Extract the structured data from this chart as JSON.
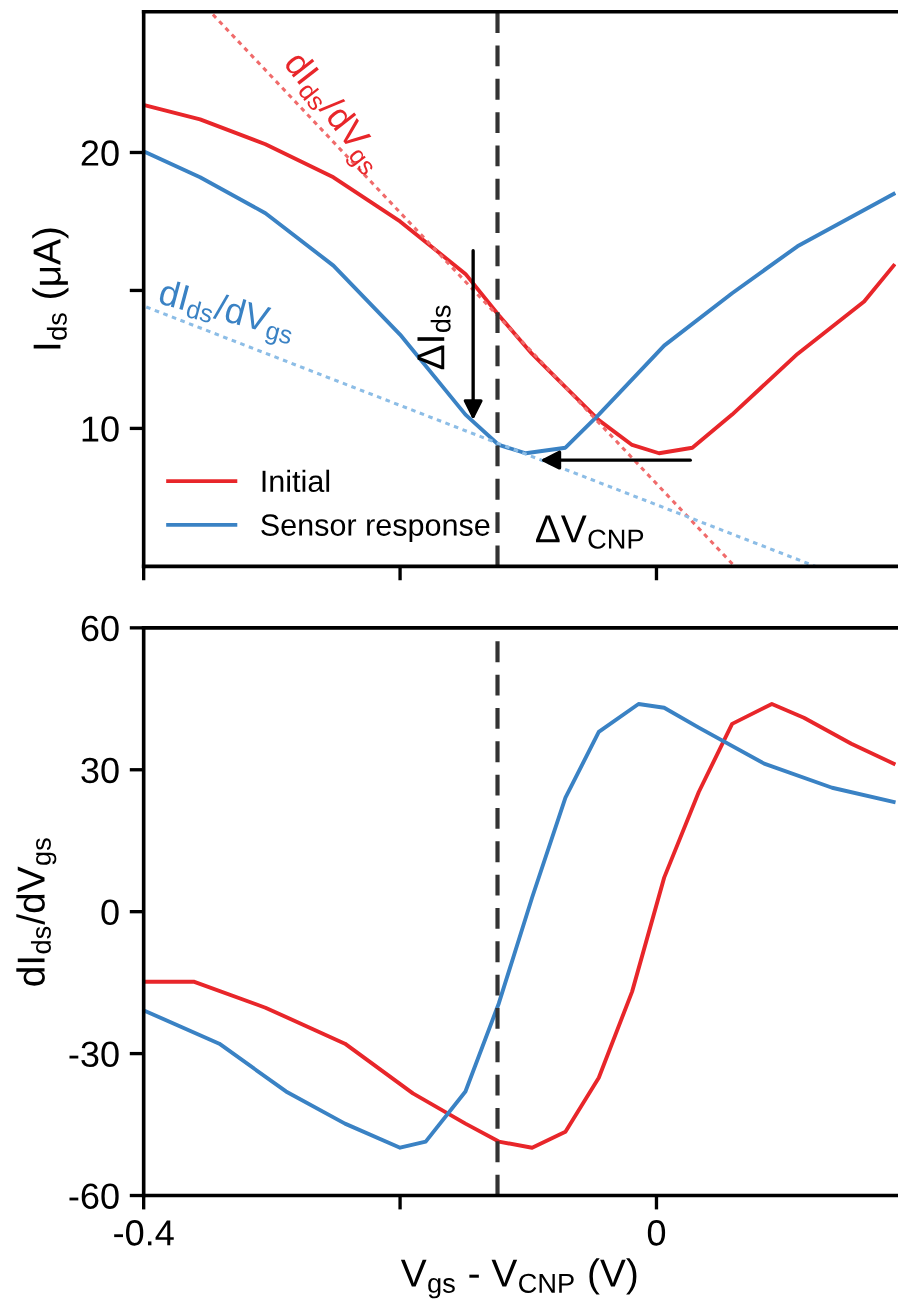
{
  "chart_data": [
    {
      "type": "line",
      "ylabel": "I$_{ds}$ (μA)",
      "xlim": [
        -0.4,
        0.187
      ],
      "ylim": [
        5,
        25.1
      ],
      "xticks": [
        {
          "value": -0.4,
          "label": null
        },
        {
          "value": -0.2,
          "label": null
        },
        {
          "value": 0,
          "label": null
        }
      ],
      "yticks": [
        10,
        {
          "value": 15,
          "label": null
        },
        20
      ],
      "tick_labels": "y",
      "legend": "bottom left",
      "grid": false,
      "series": [
        {
          "name": "Initial",
          "color": "#e8262a",
          "x": [
            -0.398,
            -0.356,
            -0.305,
            -0.252,
            -0.2,
            -0.149,
            -0.123,
            -0.097,
            -0.071,
            -0.045,
            -0.019,
            0.002,
            0.028,
            0.059,
            0.11,
            0.162,
            0.185
          ],
          "values": [
            21.7,
            21.2,
            20.3,
            19.1,
            17.5,
            15.6,
            14.1,
            12.7,
            11.5,
            10.3,
            9.4,
            9.1,
            9.3,
            10.5,
            12.7,
            14.6,
            15.9
          ]
        },
        {
          "name": "Sensor response",
          "color": "#3a82c4",
          "x": [
            -0.398,
            -0.356,
            -0.305,
            -0.252,
            -0.2,
            -0.149,
            -0.123,
            -0.102,
            -0.071,
            -0.045,
            0.006,
            0.059,
            0.11,
            0.185
          ],
          "values": [
            20.0,
            19.1,
            17.8,
            15.9,
            13.4,
            10.5,
            9.4,
            9.1,
            9.3,
            10.5,
            13.0,
            14.9,
            16.6,
            18.5
          ]
        },
        {
          "color": "#f06b6b",
          "line_style": "dotted",
          "x": [
            -0.346,
            0.061
          ],
          "values": [
            25.0,
            5.0
          ]
        },
        {
          "color": "#8cbde6",
          "line_style": "dotted",
          "x": [
            -0.398,
            0.124
          ],
          "values": [
            14.4,
            5.0
          ]
        }
      ],
      "ref_lines": [
        {
          "axis": "x",
          "value": -0.124,
          "color": "#333333",
          "line_style": "dashed"
        }
      ],
      "annotations": [
        {
          "text": "ΔI$_{ds}$",
          "x": -0.143,
          "y": 10.1
        },
        {
          "text": "ΔV$_{CNP}$",
          "x": -0.095,
          "y": 8.85
        },
        "dI$_{ds}$/dV$_{gs}$",
        "dI$_{ds}$/dV$_{gs}$"
      ]
    },
    {
      "type": "line",
      "xlabel": "V$_{gs}$ - V$_{CNP}$ (V)",
      "ylabel": "dI$_{ds}$/dV$_{gs}$",
      "xlim": [
        -0.4,
        0.187
      ],
      "ylim": [
        -60,
        60
      ],
      "xticks": [
        -0.4,
        {
          "value": -0.2,
          "label": null
        },
        0
      ],
      "yticks": [
        -60,
        -30,
        0,
        30,
        60
      ],
      "grid": false,
      "series": [
        {
          "color": "#e8262a",
          "x": [
            -0.398,
            -0.361,
            -0.305,
            -0.243,
            -0.19,
            -0.149,
            -0.123,
            -0.097,
            -0.071,
            -0.045,
            -0.019,
            0.006,
            0.033,
            0.059,
            0.09,
            0.115,
            0.152,
            0.185
          ],
          "values": [
            -14.8,
            -14.8,
            -20.3,
            -27.9,
            -38.4,
            -44.8,
            -48.6,
            -49.9,
            -46.5,
            -35.1,
            -16.9,
            7.2,
            25.3,
            39.7,
            43.9,
            41.0,
            35.5,
            31.3
          ]
        },
        {
          "color": "#3a82c4",
          "x": [
            -0.398,
            -0.341,
            -0.289,
            -0.243,
            -0.2,
            -0.18,
            -0.149,
            -0.123,
            -0.097,
            -0.071,
            -0.045,
            -0.014,
            0.006,
            0.033,
            0.084,
            0.137,
            0.185
          ],
          "values": [
            -21.1,
            -27.9,
            -38.0,
            -44.8,
            -49.9,
            -48.6,
            -38.0,
            -19.4,
            3.0,
            24.1,
            38.0,
            43.9,
            43.1,
            38.9,
            31.3,
            26.2,
            23.2
          ]
        }
      ],
      "ref_lines": [
        {
          "axis": "x",
          "value": -0.124,
          "color": "#333333",
          "line_style": "dashed"
        }
      ]
    }
  ]
}
